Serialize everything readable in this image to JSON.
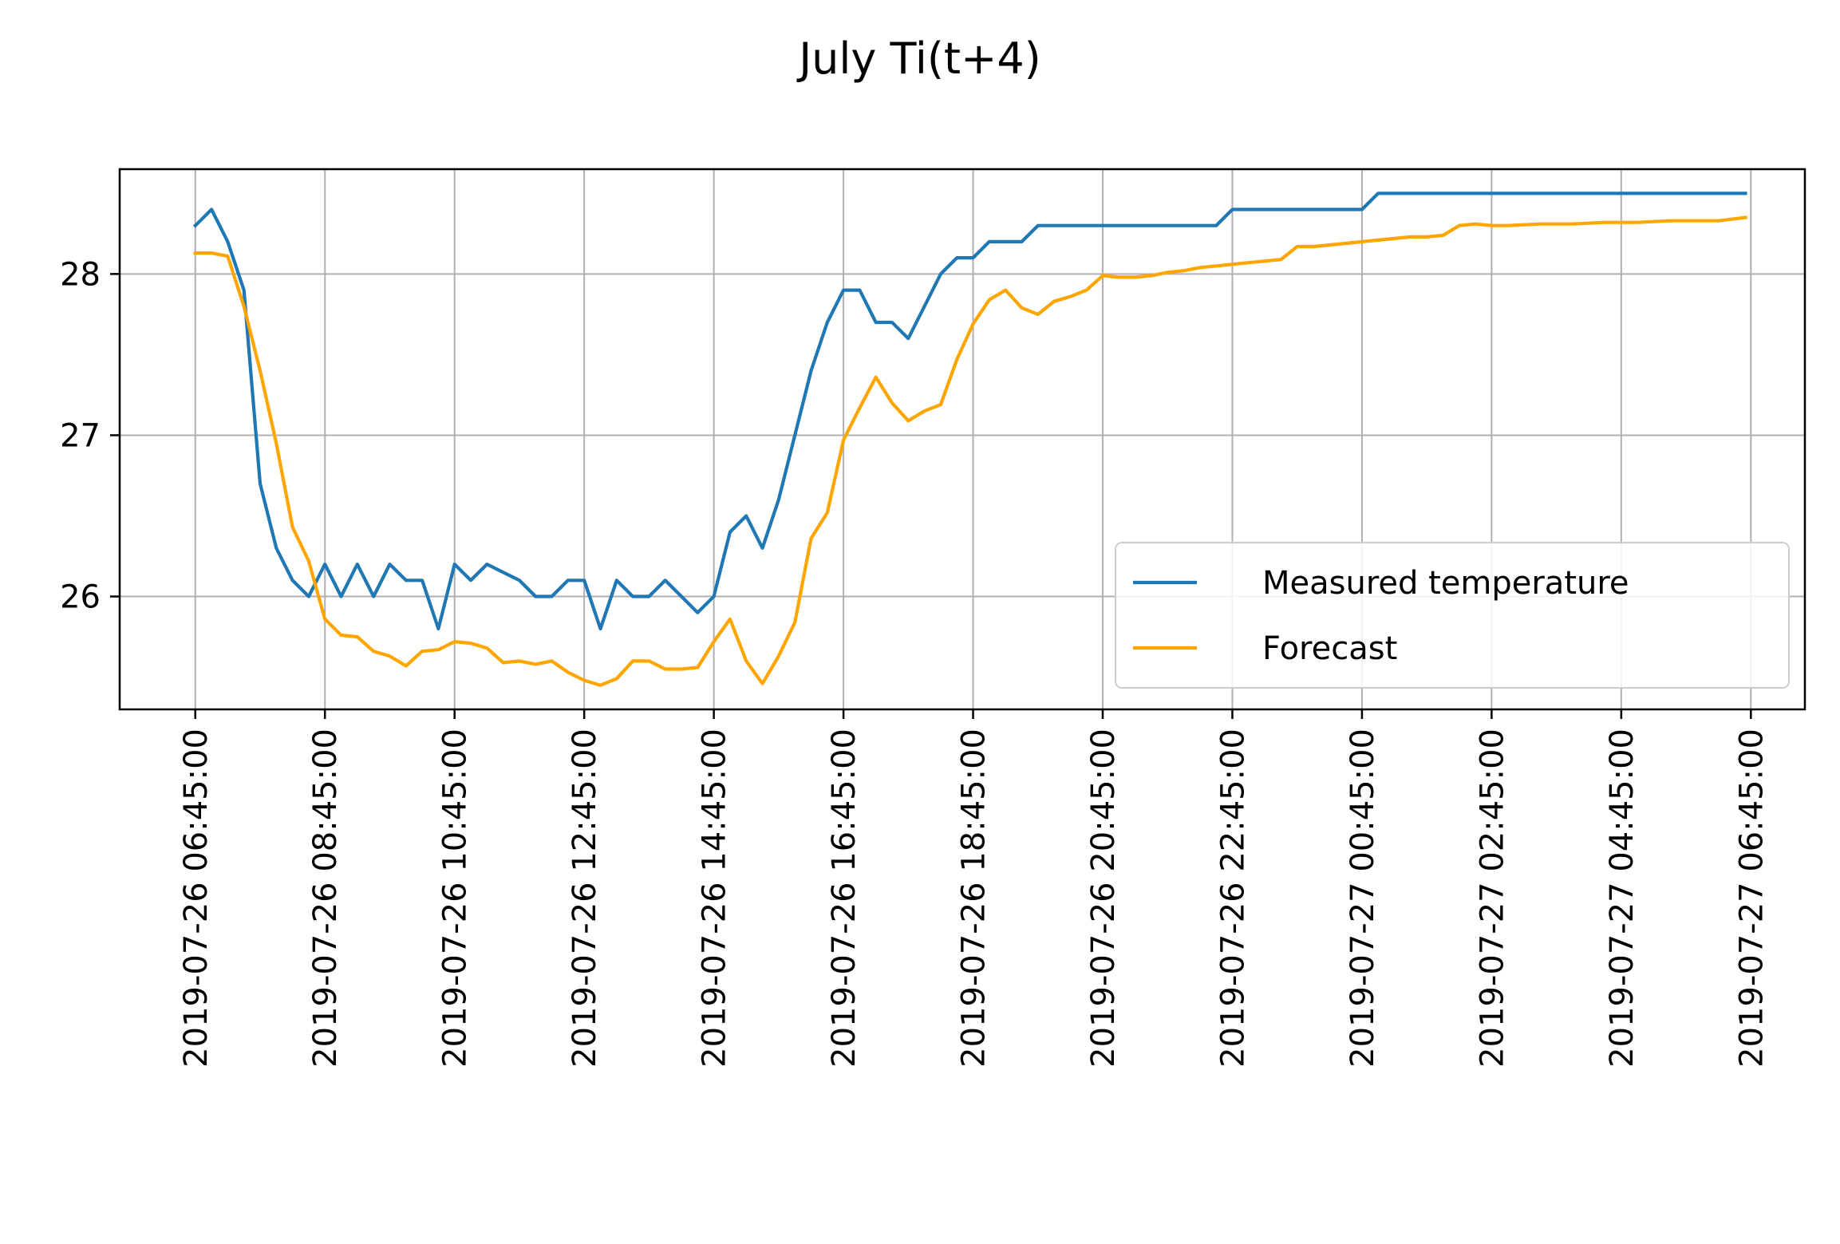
{
  "chart_data": {
    "type": "line",
    "title": "July Ti(t+4)",
    "xlabel": "",
    "ylabel": "",
    "x_ticks": [
      "2019-07-26 06:45:00",
      "2019-07-26 08:45:00",
      "2019-07-26 10:45:00",
      "2019-07-26 12:45:00",
      "2019-07-26 14:45:00",
      "2019-07-26 16:45:00",
      "2019-07-26 18:45:00",
      "2019-07-26 20:45:00",
      "2019-07-26 22:45:00",
      "2019-07-27 00:45:00",
      "2019-07-27 02:45:00",
      "2019-07-27 04:45:00",
      "2019-07-27 06:45:00"
    ],
    "y_ticks": [
      26,
      27,
      28
    ],
    "xlim": [
      "2019-07-26 05:35:00",
      "2019-07-27 07:35:00"
    ],
    "ylim": [
      25.3,
      28.65
    ],
    "grid": true,
    "legend_position": "lower right",
    "series": [
      {
        "name": "Measured temperature",
        "color": "#1f77b4",
        "points": [
          [
            "2019-07-26 06:45:00",
            28.3
          ],
          [
            "2019-07-26 07:00:00",
            28.4
          ],
          [
            "2019-07-26 07:15:00",
            28.2
          ],
          [
            "2019-07-26 07:30:00",
            27.9
          ],
          [
            "2019-07-26 07:45:00",
            26.7
          ],
          [
            "2019-07-26 08:00:00",
            26.3
          ],
          [
            "2019-07-26 08:15:00",
            26.1
          ],
          [
            "2019-07-26 08:30:00",
            26.0
          ],
          [
            "2019-07-26 08:45:00",
            26.2
          ],
          [
            "2019-07-26 09:00:00",
            26.0
          ],
          [
            "2019-07-26 09:15:00",
            26.2
          ],
          [
            "2019-07-26 09:30:00",
            26.0
          ],
          [
            "2019-07-26 09:45:00",
            26.2
          ],
          [
            "2019-07-26 10:00:00",
            26.1
          ],
          [
            "2019-07-26 10:15:00",
            26.1
          ],
          [
            "2019-07-26 10:30:00",
            25.8
          ],
          [
            "2019-07-26 10:45:00",
            26.2
          ],
          [
            "2019-07-26 11:00:00",
            26.1
          ],
          [
            "2019-07-26 11:15:00",
            26.2
          ],
          [
            "2019-07-26 11:30:00",
            26.15
          ],
          [
            "2019-07-26 11:45:00",
            26.1
          ],
          [
            "2019-07-26 12:00:00",
            26.0
          ],
          [
            "2019-07-26 12:15:00",
            26.0
          ],
          [
            "2019-07-26 12:30:00",
            26.1
          ],
          [
            "2019-07-26 12:45:00",
            26.1
          ],
          [
            "2019-07-26 13:00:00",
            25.8
          ],
          [
            "2019-07-26 13:15:00",
            26.1
          ],
          [
            "2019-07-26 13:30:00",
            26.0
          ],
          [
            "2019-07-26 13:45:00",
            26.0
          ],
          [
            "2019-07-26 14:00:00",
            26.1
          ],
          [
            "2019-07-26 14:15:00",
            26.0
          ],
          [
            "2019-07-26 14:30:00",
            25.9
          ],
          [
            "2019-07-26 14:45:00",
            26.0
          ],
          [
            "2019-07-26 15:00:00",
            26.4
          ],
          [
            "2019-07-26 15:15:00",
            26.5
          ],
          [
            "2019-07-26 15:30:00",
            26.3
          ],
          [
            "2019-07-26 15:45:00",
            26.6
          ],
          [
            "2019-07-26 16:00:00",
            27.0
          ],
          [
            "2019-07-26 16:15:00",
            27.4
          ],
          [
            "2019-07-26 16:30:00",
            27.7
          ],
          [
            "2019-07-26 16:45:00",
            27.9
          ],
          [
            "2019-07-26 17:00:00",
            27.9
          ],
          [
            "2019-07-26 17:15:00",
            27.7
          ],
          [
            "2019-07-26 17:30:00",
            27.7
          ],
          [
            "2019-07-26 17:45:00",
            27.6
          ],
          [
            "2019-07-26 18:00:00",
            27.8
          ],
          [
            "2019-07-26 18:15:00",
            28.0
          ],
          [
            "2019-07-26 18:30:00",
            28.1
          ],
          [
            "2019-07-26 18:45:00",
            28.1
          ],
          [
            "2019-07-26 19:00:00",
            28.2
          ],
          [
            "2019-07-26 19:15:00",
            28.2
          ],
          [
            "2019-07-26 19:30:00",
            28.2
          ],
          [
            "2019-07-26 19:45:00",
            28.3
          ],
          [
            "2019-07-26 22:30:00",
            28.3
          ],
          [
            "2019-07-26 22:45:00",
            28.4
          ],
          [
            "2019-07-27 00:30:00",
            28.4
          ],
          [
            "2019-07-27 00:45:00",
            28.4
          ],
          [
            "2019-07-27 01:00:00",
            28.5
          ],
          [
            "2019-07-27 06:40:00",
            28.5
          ]
        ]
      },
      {
        "name": "Forecast",
        "color": "#ffa500",
        "points": [
          [
            "2019-07-26 06:45:00",
            28.13
          ],
          [
            "2019-07-26 07:00:00",
            28.13
          ],
          [
            "2019-07-26 07:15:00",
            28.11
          ],
          [
            "2019-07-26 07:30:00",
            27.8
          ],
          [
            "2019-07-26 07:45:00",
            27.4
          ],
          [
            "2019-07-26 08:00:00",
            26.95
          ],
          [
            "2019-07-26 08:15:00",
            26.43
          ],
          [
            "2019-07-26 08:30:00",
            26.22
          ],
          [
            "2019-07-26 08:45:00",
            25.86
          ],
          [
            "2019-07-26 09:00:00",
            25.76
          ],
          [
            "2019-07-26 09:15:00",
            25.75
          ],
          [
            "2019-07-26 09:30:00",
            25.66
          ],
          [
            "2019-07-26 09:45:00",
            25.63
          ],
          [
            "2019-07-26 10:00:00",
            25.57
          ],
          [
            "2019-07-26 10:15:00",
            25.66
          ],
          [
            "2019-07-26 10:30:00",
            25.67
          ],
          [
            "2019-07-26 10:45:00",
            25.72
          ],
          [
            "2019-07-26 11:00:00",
            25.71
          ],
          [
            "2019-07-26 11:15:00",
            25.68
          ],
          [
            "2019-07-26 11:30:00",
            25.59
          ],
          [
            "2019-07-26 11:45:00",
            25.6
          ],
          [
            "2019-07-26 12:00:00",
            25.58
          ],
          [
            "2019-07-26 12:15:00",
            25.6
          ],
          [
            "2019-07-26 12:30:00",
            25.53
          ],
          [
            "2019-07-26 12:45:00",
            25.48
          ],
          [
            "2019-07-26 13:00:00",
            25.45
          ],
          [
            "2019-07-26 13:15:00",
            25.49
          ],
          [
            "2019-07-26 13:30:00",
            25.6
          ],
          [
            "2019-07-26 13:45:00",
            25.6
          ],
          [
            "2019-07-26 14:00:00",
            25.55
          ],
          [
            "2019-07-26 14:15:00",
            25.55
          ],
          [
            "2019-07-26 14:30:00",
            25.56
          ],
          [
            "2019-07-26 14:45:00",
            25.72
          ],
          [
            "2019-07-26 15:00:00",
            25.86
          ],
          [
            "2019-07-26 15:15:00",
            25.6
          ],
          [
            "2019-07-26 15:30:00",
            25.46
          ],
          [
            "2019-07-26 15:45:00",
            25.63
          ],
          [
            "2019-07-26 16:00:00",
            25.84
          ],
          [
            "2019-07-26 16:15:00",
            26.36
          ],
          [
            "2019-07-26 16:30:00",
            26.52
          ],
          [
            "2019-07-26 16:45:00",
            26.97
          ],
          [
            "2019-07-26 17:00:00",
            27.17
          ],
          [
            "2019-07-26 17:15:00",
            27.36
          ],
          [
            "2019-07-26 17:30:00",
            27.2
          ],
          [
            "2019-07-26 17:45:00",
            27.09
          ],
          [
            "2019-07-26 18:00:00",
            27.15
          ],
          [
            "2019-07-26 18:15:00",
            27.19
          ],
          [
            "2019-07-26 18:30:00",
            27.47
          ],
          [
            "2019-07-26 18:45:00",
            27.69
          ],
          [
            "2019-07-26 19:00:00",
            27.84
          ],
          [
            "2019-07-26 19:15:00",
            27.9
          ],
          [
            "2019-07-26 19:30:00",
            27.79
          ],
          [
            "2019-07-26 19:45:00",
            27.75
          ],
          [
            "2019-07-26 20:00:00",
            27.83
          ],
          [
            "2019-07-26 20:15:00",
            27.86
          ],
          [
            "2019-07-26 20:30:00",
            27.9
          ],
          [
            "2019-07-26 20:45:00",
            27.99
          ],
          [
            "2019-07-26 21:00:00",
            27.98
          ],
          [
            "2019-07-26 21:15:00",
            27.98
          ],
          [
            "2019-07-26 21:30:00",
            27.99
          ],
          [
            "2019-07-26 21:45:00",
            28.01
          ],
          [
            "2019-07-26 22:00:00",
            28.02
          ],
          [
            "2019-07-26 22:15:00",
            28.04
          ],
          [
            "2019-07-26 22:30:00",
            28.05
          ],
          [
            "2019-07-26 22:45:00",
            28.06
          ],
          [
            "2019-07-26 23:00:00",
            28.07
          ],
          [
            "2019-07-26 23:15:00",
            28.08
          ],
          [
            "2019-07-26 23:30:00",
            28.09
          ],
          [
            "2019-07-26 23:45:00",
            28.17
          ],
          [
            "2019-07-27 00:00:00",
            28.17
          ],
          [
            "2019-07-27 00:15:00",
            28.18
          ],
          [
            "2019-07-27 00:30:00",
            28.19
          ],
          [
            "2019-07-27 00:45:00",
            28.2
          ],
          [
            "2019-07-27 01:00:00",
            28.21
          ],
          [
            "2019-07-27 01:15:00",
            28.22
          ],
          [
            "2019-07-27 01:30:00",
            28.23
          ],
          [
            "2019-07-27 01:45:00",
            28.23
          ],
          [
            "2019-07-27 02:00:00",
            28.24
          ],
          [
            "2019-07-27 02:15:00",
            28.3
          ],
          [
            "2019-07-27 02:30:00",
            28.31
          ],
          [
            "2019-07-27 02:45:00",
            28.3
          ],
          [
            "2019-07-27 03:00:00",
            28.3
          ],
          [
            "2019-07-27 03:30:00",
            28.31
          ],
          [
            "2019-07-27 04:00:00",
            28.31
          ],
          [
            "2019-07-27 04:30:00",
            28.32
          ],
          [
            "2019-07-27 05:00:00",
            28.32
          ],
          [
            "2019-07-27 05:30:00",
            28.33
          ],
          [
            "2019-07-27 06:00:00",
            28.33
          ],
          [
            "2019-07-27 06:15:00",
            28.33
          ],
          [
            "2019-07-27 06:40:00",
            28.35
          ]
        ]
      }
    ]
  }
}
